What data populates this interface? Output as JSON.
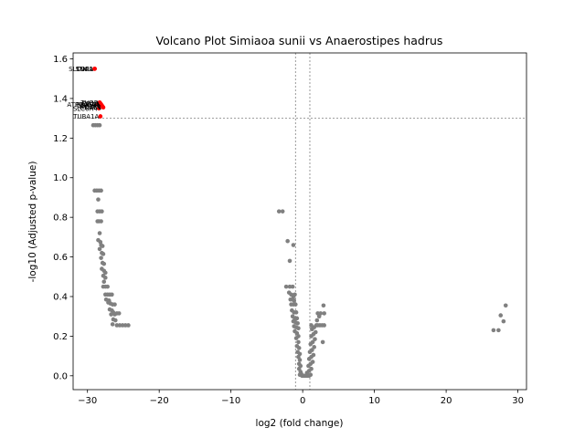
{
  "chart_data": {
    "type": "scatter",
    "title": "Volcano Plot Simiaoa sunii vs Anaerostipes hadrus",
    "xlabel": "log2 (fold change)",
    "ylabel": "-log10 (Adjusted p-value)",
    "xlim": [
      -32,
      31.2
    ],
    "ylim": [
      -0.07,
      1.63
    ],
    "xticks": [
      -30,
      -20,
      -10,
      0,
      10,
      20,
      30
    ],
    "yticks": [
      0.0,
      0.2,
      0.4,
      0.6,
      0.8,
      1.0,
      1.2,
      1.4,
      1.6
    ],
    "thresholds": {
      "x": [
        -1,
        1
      ],
      "y": 1.3
    },
    "colors": {
      "significant": "#ff0000",
      "nonsignificant": "#808080"
    },
    "significant": [
      {
        "x": -29.0,
        "y": 1.55,
        "label": "SLC9A1"
      },
      {
        "x": -29.0,
        "y": 1.55,
        "label": "SNCA"
      },
      {
        "x": -29.0,
        "y": 1.55,
        "label": "TOP1"
      },
      {
        "x": -28.2,
        "y": 1.375,
        "label": "CD19"
      },
      {
        "x": -28.1,
        "y": 1.37,
        "label": "ATP6V0A1"
      },
      {
        "x": -28.0,
        "y": 1.365,
        "label": "GRIN1"
      },
      {
        "x": -27.9,
        "y": 1.36,
        "label": "ATP2A1"
      },
      {
        "x": -27.8,
        "y": 1.355,
        "label": "HDAC1"
      },
      {
        "x": -28.4,
        "y": 1.35,
        "label": "SLC6A4"
      },
      {
        "x": -28.3,
        "y": 1.38,
        "label": "TUBB"
      },
      {
        "x": -28.5,
        "y": 1.37,
        "label": "PTGS2"
      },
      {
        "x": -28.2,
        "y": 1.31,
        "label": "TUBA1A"
      }
    ],
    "nonsignificant": [
      [
        -29.2,
        1.265
      ],
      [
        -28.9,
        1.265
      ],
      [
        -28.6,
        1.265
      ],
      [
        -28.3,
        1.265
      ],
      [
        -29.0,
        0.935
      ],
      [
        -28.7,
        0.935
      ],
      [
        -28.4,
        0.935
      ],
      [
        -28.1,
        0.935
      ],
      [
        -28.5,
        0.89
      ],
      [
        -28.6,
        0.83
      ],
      [
        -28.3,
        0.83
      ],
      [
        -28.0,
        0.83
      ],
      [
        -28.6,
        0.78
      ],
      [
        -28.4,
        0.78
      ],
      [
        -28.1,
        0.78
      ],
      [
        -28.3,
        0.72
      ],
      [
        -28.5,
        0.685
      ],
      [
        -28.2,
        0.675
      ],
      [
        -28.1,
        0.66
      ],
      [
        -27.9,
        0.655
      ],
      [
        -28.3,
        0.64
      ],
      [
        -28.0,
        0.62
      ],
      [
        -27.8,
        0.615
      ],
      [
        -28.1,
        0.595
      ],
      [
        -27.9,
        0.57
      ],
      [
        -27.7,
        0.565
      ],
      [
        -28.0,
        0.54
      ],
      [
        -27.7,
        0.53
      ],
      [
        -27.5,
        0.52
      ],
      [
        -27.8,
        0.505
      ],
      [
        -27.5,
        0.495
      ],
      [
        -27.7,
        0.475
      ],
      [
        -27.8,
        0.45
      ],
      [
        -27.5,
        0.45
      ],
      [
        -27.2,
        0.45
      ],
      [
        -27.5,
        0.41
      ],
      [
        -27.2,
        0.41
      ],
      [
        -26.9,
        0.41
      ],
      [
        -26.6,
        0.41
      ],
      [
        -27.4,
        0.385
      ],
      [
        -27.0,
        0.38
      ],
      [
        -27.1,
        0.37
      ],
      [
        -26.8,
        0.365
      ],
      [
        -26.5,
        0.36
      ],
      [
        -26.2,
        0.36
      ],
      [
        -26.9,
        0.335
      ],
      [
        -26.6,
        0.33
      ],
      [
        -26.4,
        0.32
      ],
      [
        -26.7,
        0.31
      ],
      [
        -26.2,
        0.31
      ],
      [
        -25.9,
        0.315
      ],
      [
        -25.6,
        0.315
      ],
      [
        -26.4,
        0.285
      ],
      [
        -26.1,
        0.28
      ],
      [
        -26.5,
        0.26
      ],
      [
        -25.9,
        0.255
      ],
      [
        -25.5,
        0.255
      ],
      [
        -25.1,
        0.255
      ],
      [
        -24.7,
        0.255
      ],
      [
        -24.3,
        0.255
      ],
      [
        -3.3,
        0.83
      ],
      [
        -2.8,
        0.83
      ],
      [
        -2.1,
        0.68
      ],
      [
        -1.3,
        0.66
      ],
      [
        -1.8,
        0.58
      ],
      [
        -2.3,
        0.45
      ],
      [
        -1.8,
        0.45
      ],
      [
        -1.4,
        0.45
      ],
      [
        -1.9,
        0.42
      ],
      [
        -1.6,
        0.41
      ],
      [
        -1.3,
        0.4
      ],
      [
        -1.1,
        0.41
      ],
      [
        -1.7,
        0.385
      ],
      [
        -1.4,
        0.385
      ],
      [
        -1.2,
        0.38
      ],
      [
        -1.6,
        0.36
      ],
      [
        -1.3,
        0.36
      ],
      [
        -1.0,
        0.36
      ],
      [
        -1.5,
        0.33
      ],
      [
        -1.2,
        0.32
      ],
      [
        -0.9,
        0.32
      ],
      [
        -1.4,
        0.3
      ],
      [
        -1.1,
        0.29
      ],
      [
        -0.8,
        0.29
      ],
      [
        -1.3,
        0.275
      ],
      [
        -1.0,
        0.27
      ],
      [
        -0.7,
        0.265
      ],
      [
        -1.2,
        0.25
      ],
      [
        -0.9,
        0.245
      ],
      [
        -0.6,
        0.24
      ],
      [
        -1.1,
        0.225
      ],
      [
        -0.8,
        0.215
      ],
      [
        -0.6,
        0.2
      ],
      [
        -0.9,
        0.19
      ],
      [
        -0.6,
        0.17
      ],
      [
        -0.8,
        0.15
      ],
      [
        -0.5,
        0.14
      ],
      [
        -0.7,
        0.12
      ],
      [
        -0.4,
        0.11
      ],
      [
        -0.6,
        0.095
      ],
      [
        -0.4,
        0.08
      ],
      [
        -0.5,
        0.06
      ],
      [
        -0.3,
        0.05
      ],
      [
        -0.5,
        0.035
      ],
      [
        -0.3,
        0.02
      ],
      [
        -0.2,
        0.01
      ],
      [
        -0.4,
        0.005
      ],
      [
        -0.1,
        0.0
      ],
      [
        0.1,
        0.0
      ],
      [
        0.3,
        0.0
      ],
      [
        0.5,
        0.0
      ],
      [
        0.7,
        0.0
      ],
      [
        0.9,
        0.0
      ],
      [
        1.1,
        0.005
      ],
      [
        0.6,
        0.015
      ],
      [
        0.9,
        0.025
      ],
      [
        1.2,
        0.035
      ],
      [
        0.8,
        0.05
      ],
      [
        1.1,
        0.06
      ],
      [
        1.4,
        0.07
      ],
      [
        0.9,
        0.085
      ],
      [
        1.2,
        0.095
      ],
      [
        1.5,
        0.105
      ],
      [
        1.0,
        0.12
      ],
      [
        1.3,
        0.13
      ],
      [
        1.6,
        0.145
      ],
      [
        1.1,
        0.16
      ],
      [
        1.4,
        0.17
      ],
      [
        1.7,
        0.185
      ],
      [
        1.2,
        0.2
      ],
      [
        1.5,
        0.21
      ],
      [
        1.8,
        0.22
      ],
      [
        1.3,
        0.235
      ],
      [
        1.6,
        0.245
      ],
      [
        1.9,
        0.255
      ],
      [
        1.2,
        0.255
      ],
      [
        2.1,
        0.255
      ],
      [
        2.4,
        0.255
      ],
      [
        2.7,
        0.255
      ],
      [
        3.0,
        0.255
      ],
      [
        2.0,
        0.28
      ],
      [
        2.3,
        0.3
      ],
      [
        2.1,
        0.315
      ],
      [
        2.5,
        0.315
      ],
      [
        3.0,
        0.315
      ],
      [
        2.9,
        0.355
      ],
      [
        2.8,
        0.17
      ],
      [
        27.6,
        0.305
      ],
      [
        28.0,
        0.275
      ],
      [
        28.3,
        0.355
      ],
      [
        26.6,
        0.23
      ],
      [
        27.3,
        0.23
      ]
    ]
  }
}
